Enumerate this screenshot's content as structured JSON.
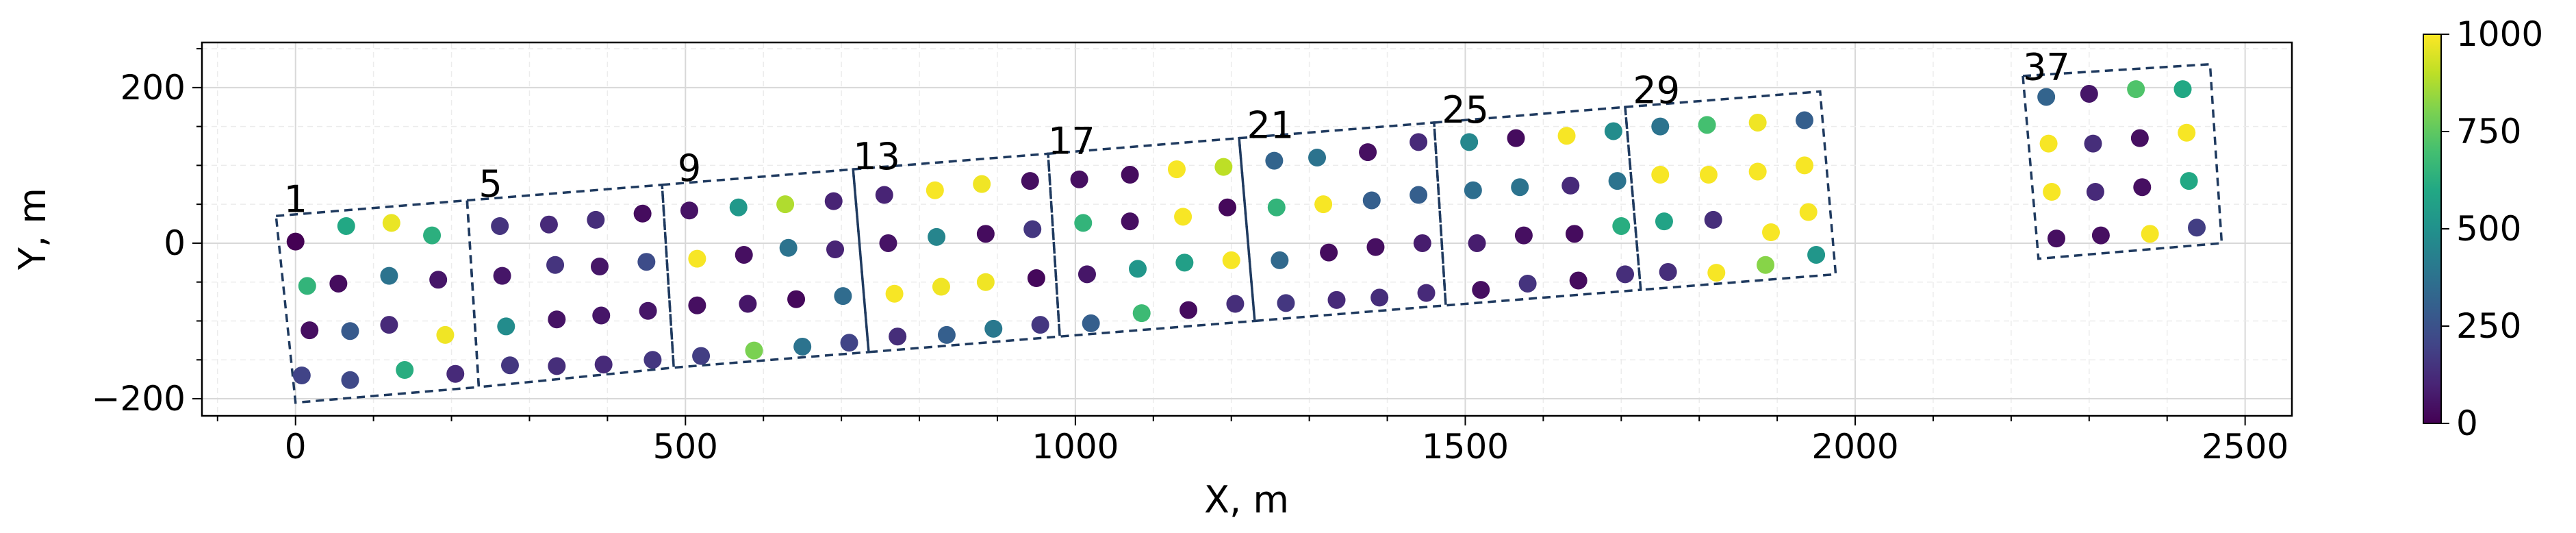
{
  "chart_data": {
    "type": "scatter",
    "title": "",
    "xlabel": "X, m",
    "ylabel": "Y, m",
    "xlim": [
      -120,
      2560
    ],
    "ylim": [
      -222,
      258
    ],
    "xticks": [
      0,
      500,
      1000,
      1500,
      2000,
      2500
    ],
    "xtick_labels": [
      "0",
      "500",
      "1000",
      "1500",
      "2000",
      "2500"
    ],
    "yticks": [
      -200,
      0,
      200
    ],
    "ytick_labels": [
      "−200",
      "0",
      "200"
    ],
    "grid": true,
    "colorbar": {
      "colormap": "viridis",
      "min": 0,
      "max": 1000,
      "ticks": [
        0,
        250,
        500,
        750,
        1000
      ],
      "tick_labels": [
        "0",
        "250",
        "500",
        "750",
        "1000"
      ]
    },
    "block_labels": [
      {
        "text": "1",
        "x": -15,
        "y": 40
      },
      {
        "text": "5",
        "x": 235,
        "y": 60
      },
      {
        "text": "9",
        "x": 490,
        "y": 80
      },
      {
        "text": "13",
        "x": 715,
        "y": 95
      },
      {
        "text": "17",
        "x": 965,
        "y": 115
      },
      {
        "text": "21",
        "x": 1220,
        "y": 135
      },
      {
        "text": "25",
        "x": 1470,
        "y": 155
      },
      {
        "text": "29",
        "x": 1715,
        "y": 180
      },
      {
        "text": "37",
        "x": 2215,
        "y": 210
      }
    ],
    "blocks": [
      [
        [
          -25,
          35
        ],
        [
          220,
          55
        ],
        [
          235,
          -185
        ],
        [
          0,
          -205
        ]
      ],
      [
        [
          220,
          55
        ],
        [
          470,
          75
        ],
        [
          485,
          -160
        ],
        [
          235,
          -185
        ]
      ],
      [
        [
          470,
          75
        ],
        [
          715,
          95
        ],
        [
          735,
          -140
        ],
        [
          485,
          -160
        ]
      ],
      [
        [
          715,
          95
        ],
        [
          965,
          115
        ],
        [
          980,
          -120
        ],
        [
          735,
          -140
        ]
      ],
      [
        [
          965,
          115
        ],
        [
          1210,
          135
        ],
        [
          1230,
          -100
        ],
        [
          980,
          -120
        ]
      ],
      [
        [
          1210,
          135
        ],
        [
          1460,
          155
        ],
        [
          1475,
          -80
        ],
        [
          1230,
          -100
        ]
      ],
      [
        [
          1460,
          155
        ],
        [
          1705,
          175
        ],
        [
          1725,
          -60
        ],
        [
          1475,
          -80
        ]
      ],
      [
        [
          1705,
          175
        ],
        [
          1955,
          195
        ],
        [
          1975,
          -40
        ],
        [
          1725,
          -60
        ]
      ],
      [
        [
          2215,
          215
        ],
        [
          2455,
          230
        ],
        [
          2470,
          0
        ],
        [
          2235,
          -20
        ]
      ]
    ],
    "points": [
      {
        "x": 0,
        "y": 2,
        "v": 0
      },
      {
        "x": 65,
        "y": 22,
        "v": 600
      },
      {
        "x": 123,
        "y": 26,
        "v": 970
      },
      {
        "x": 175,
        "y": 10,
        "v": 630
      },
      {
        "x": 15,
        "y": -55,
        "v": 650
      },
      {
        "x": 55,
        "y": -52,
        "v": 30
      },
      {
        "x": 120,
        "y": -42,
        "v": 380
      },
      {
        "x": 183,
        "y": -47,
        "v": 60
      },
      {
        "x": 18,
        "y": -112,
        "v": 40
      },
      {
        "x": 70,
        "y": -113,
        "v": 280
      },
      {
        "x": 120,
        "y": -105,
        "v": 120
      },
      {
        "x": 192,
        "y": -118,
        "v": 980
      },
      {
        "x": 8,
        "y": -170,
        "v": 200
      },
      {
        "x": 70,
        "y": -176,
        "v": 220
      },
      {
        "x": 140,
        "y": -163,
        "v": 620
      },
      {
        "x": 205,
        "y": -168,
        "v": 120
      },
      {
        "x": 262,
        "y": 22,
        "v": 150
      },
      {
        "x": 325,
        "y": 24,
        "v": 120
      },
      {
        "x": 385,
        "y": 30,
        "v": 130
      },
      {
        "x": 445,
        "y": 38,
        "v": 30
      },
      {
        "x": 265,
        "y": -42,
        "v": 60
      },
      {
        "x": 333,
        "y": -28,
        "v": 150
      },
      {
        "x": 390,
        "y": -30,
        "v": 60
      },
      {
        "x": 450,
        "y": -24,
        "v": 230
      },
      {
        "x": 270,
        "y": -107,
        "v": 480
      },
      {
        "x": 335,
        "y": -98,
        "v": 50
      },
      {
        "x": 392,
        "y": -93,
        "v": 60
      },
      {
        "x": 452,
        "y": -87,
        "v": 60
      },
      {
        "x": 275,
        "y": -157,
        "v": 160
      },
      {
        "x": 335,
        "y": -158,
        "v": 130
      },
      {
        "x": 395,
        "y": -156,
        "v": 120
      },
      {
        "x": 458,
        "y": -150,
        "v": 160
      },
      {
        "x": 505,
        "y": 42,
        "v": 50
      },
      {
        "x": 568,
        "y": 46,
        "v": 530
      },
      {
        "x": 628,
        "y": 50,
        "v": 880
      },
      {
        "x": 690,
        "y": 54,
        "v": 100
      },
      {
        "x": 515,
        "y": -20,
        "v": 990
      },
      {
        "x": 575,
        "y": -15,
        "v": 40
      },
      {
        "x": 632,
        "y": -6,
        "v": 380
      },
      {
        "x": 692,
        "y": -8,
        "v": 100
      },
      {
        "x": 515,
        "y": -80,
        "v": 40
      },
      {
        "x": 580,
        "y": -78,
        "v": 60
      },
      {
        "x": 642,
        "y": -72,
        "v": 20
      },
      {
        "x": 702,
        "y": -68,
        "v": 350
      },
      {
        "x": 520,
        "y": -145,
        "v": 180
      },
      {
        "x": 588,
        "y": -138,
        "v": 800
      },
      {
        "x": 650,
        "y": -133,
        "v": 380
      },
      {
        "x": 710,
        "y": -128,
        "v": 200
      },
      {
        "x": 755,
        "y": 62,
        "v": 100
      },
      {
        "x": 820,
        "y": 68,
        "v": 990
      },
      {
        "x": 880,
        "y": 76,
        "v": 980
      },
      {
        "x": 942,
        "y": 80,
        "v": 40
      },
      {
        "x": 760,
        "y": 0,
        "v": 50
      },
      {
        "x": 822,
        "y": 8,
        "v": 450
      },
      {
        "x": 885,
        "y": 12,
        "v": 30
      },
      {
        "x": 945,
        "y": 18,
        "v": 160
      },
      {
        "x": 768,
        "y": -65,
        "v": 990
      },
      {
        "x": 828,
        "y": -56,
        "v": 980
      },
      {
        "x": 885,
        "y": -50,
        "v": 980
      },
      {
        "x": 950,
        "y": -45,
        "v": 20
      },
      {
        "x": 772,
        "y": -120,
        "v": 130
      },
      {
        "x": 835,
        "y": -118,
        "v": 300
      },
      {
        "x": 895,
        "y": -110,
        "v": 400
      },
      {
        "x": 955,
        "y": -105,
        "v": 160
      },
      {
        "x": 1005,
        "y": 82,
        "v": 40
      },
      {
        "x": 1070,
        "y": 88,
        "v": 30
      },
      {
        "x": 1130,
        "y": 95,
        "v": 990
      },
      {
        "x": 1190,
        "y": 98,
        "v": 900
      },
      {
        "x": 1010,
        "y": 26,
        "v": 650
      },
      {
        "x": 1070,
        "y": 28,
        "v": 40
      },
      {
        "x": 1138,
        "y": 34,
        "v": 990
      },
      {
        "x": 1195,
        "y": 46,
        "v": 20
      },
      {
        "x": 1015,
        "y": -40,
        "v": 60
      },
      {
        "x": 1080,
        "y": -33,
        "v": 520
      },
      {
        "x": 1140,
        "y": -25,
        "v": 560
      },
      {
        "x": 1200,
        "y": -22,
        "v": 990
      },
      {
        "x": 1020,
        "y": -103,
        "v": 300
      },
      {
        "x": 1085,
        "y": -90,
        "v": 680
      },
      {
        "x": 1145,
        "y": -86,
        "v": 30
      },
      {
        "x": 1205,
        "y": -78,
        "v": 130
      },
      {
        "x": 1255,
        "y": 106,
        "v": 320
      },
      {
        "x": 1310,
        "y": 110,
        "v": 380
      },
      {
        "x": 1375,
        "y": 117,
        "v": 40
      },
      {
        "x": 1440,
        "y": 130,
        "v": 120
      },
      {
        "x": 1258,
        "y": 46,
        "v": 650
      },
      {
        "x": 1318,
        "y": 50,
        "v": 990
      },
      {
        "x": 1380,
        "y": 55,
        "v": 300
      },
      {
        "x": 1440,
        "y": 62,
        "v": 300
      },
      {
        "x": 1262,
        "y": -22,
        "v": 340
      },
      {
        "x": 1325,
        "y": -12,
        "v": 30
      },
      {
        "x": 1385,
        "y": -5,
        "v": 40
      },
      {
        "x": 1445,
        "y": 0,
        "v": 80
      },
      {
        "x": 1270,
        "y": -77,
        "v": 160
      },
      {
        "x": 1335,
        "y": -73,
        "v": 120
      },
      {
        "x": 1390,
        "y": -70,
        "v": 130
      },
      {
        "x": 1450,
        "y": -64,
        "v": 120
      },
      {
        "x": 1505,
        "y": 130,
        "v": 460
      },
      {
        "x": 1565,
        "y": 135,
        "v": 30
      },
      {
        "x": 1630,
        "y": 138,
        "v": 990
      },
      {
        "x": 1690,
        "y": 144,
        "v": 480
      },
      {
        "x": 1510,
        "y": 68,
        "v": 360
      },
      {
        "x": 1570,
        "y": 72,
        "v": 380
      },
      {
        "x": 1635,
        "y": 74,
        "v": 120
      },
      {
        "x": 1695,
        "y": 80,
        "v": 380
      },
      {
        "x": 1515,
        "y": 0,
        "v": 80
      },
      {
        "x": 1575,
        "y": 10,
        "v": 40
      },
      {
        "x": 1640,
        "y": 12,
        "v": 30
      },
      {
        "x": 1700,
        "y": 22,
        "v": 620
      },
      {
        "x": 1520,
        "y": -60,
        "v": 40
      },
      {
        "x": 1580,
        "y": -52,
        "v": 150
      },
      {
        "x": 1645,
        "y": -48,
        "v": 30
      },
      {
        "x": 1705,
        "y": -40,
        "v": 130
      },
      {
        "x": 1750,
        "y": 150,
        "v": 380
      },
      {
        "x": 1810,
        "y": 152,
        "v": 700
      },
      {
        "x": 1875,
        "y": 155,
        "v": 980
      },
      {
        "x": 1935,
        "y": 158,
        "v": 300
      },
      {
        "x": 1750,
        "y": 88,
        "v": 990
      },
      {
        "x": 1812,
        "y": 88,
        "v": 990
      },
      {
        "x": 1875,
        "y": 92,
        "v": 990
      },
      {
        "x": 1935,
        "y": 100,
        "v": 990
      },
      {
        "x": 1755,
        "y": 28,
        "v": 580
      },
      {
        "x": 1818,
        "y": 30,
        "v": 130
      },
      {
        "x": 1892,
        "y": 14,
        "v": 990
      },
      {
        "x": 1940,
        "y": 40,
        "v": 990
      },
      {
        "x": 1760,
        "y": -37,
        "v": 130
      },
      {
        "x": 1822,
        "y": -38,
        "v": 990
      },
      {
        "x": 1885,
        "y": -28,
        "v": 820
      },
      {
        "x": 1950,
        "y": -15,
        "v": 520
      },
      {
        "x": 2245,
        "y": 188,
        "v": 320
      },
      {
        "x": 2300,
        "y": 192,
        "v": 60
      },
      {
        "x": 2360,
        "y": 198,
        "v": 720
      },
      {
        "x": 2420,
        "y": 198,
        "v": 600
      },
      {
        "x": 2248,
        "y": 128,
        "v": 990
      },
      {
        "x": 2305,
        "y": 128,
        "v": 130
      },
      {
        "x": 2365,
        "y": 135,
        "v": 40
      },
      {
        "x": 2425,
        "y": 142,
        "v": 990
      },
      {
        "x": 2252,
        "y": 66,
        "v": 990
      },
      {
        "x": 2308,
        "y": 66,
        "v": 120
      },
      {
        "x": 2368,
        "y": 72,
        "v": 40
      },
      {
        "x": 2428,
        "y": 80,
        "v": 600
      },
      {
        "x": 2258,
        "y": 6,
        "v": 40
      },
      {
        "x": 2315,
        "y": 10,
        "v": 40
      },
      {
        "x": 2378,
        "y": 12,
        "v": 990
      },
      {
        "x": 2438,
        "y": 20,
        "v": 180
      }
    ]
  }
}
